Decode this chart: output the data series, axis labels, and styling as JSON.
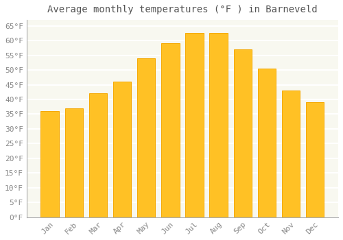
{
  "title": "Average monthly temperatures (°F ) in Barneveld",
  "months": [
    "Jan",
    "Feb",
    "Mar",
    "Apr",
    "May",
    "Jun",
    "Jul",
    "Aug",
    "Sep",
    "Oct",
    "Nov",
    "Dec"
  ],
  "values": [
    36,
    37,
    42,
    46,
    54,
    59,
    62.5,
    62.5,
    57,
    50.5,
    43,
    39
  ],
  "bar_color": "#FFC125",
  "bar_edge_color": "#F5A800",
  "background_color": "#FFFFFF",
  "plot_bg_color": "#F8F8F0",
  "grid_color": "#FFFFFF",
  "ylim": [
    0,
    67
  ],
  "yticks": [
    0,
    5,
    10,
    15,
    20,
    25,
    30,
    35,
    40,
    45,
    50,
    55,
    60,
    65
  ],
  "ytick_labels": [
    "0°F",
    "5°F",
    "10°F",
    "15°F",
    "20°F",
    "25°F",
    "30°F",
    "35°F",
    "40°F",
    "45°F",
    "50°F",
    "55°F",
    "60°F",
    "65°F"
  ],
  "title_fontsize": 10,
  "tick_fontsize": 8,
  "figsize": [
    5.0,
    3.5
  ],
  "dpi": 100,
  "bar_width": 0.75,
  "spine_color": "#AAAAAA",
  "tick_color": "#888888"
}
